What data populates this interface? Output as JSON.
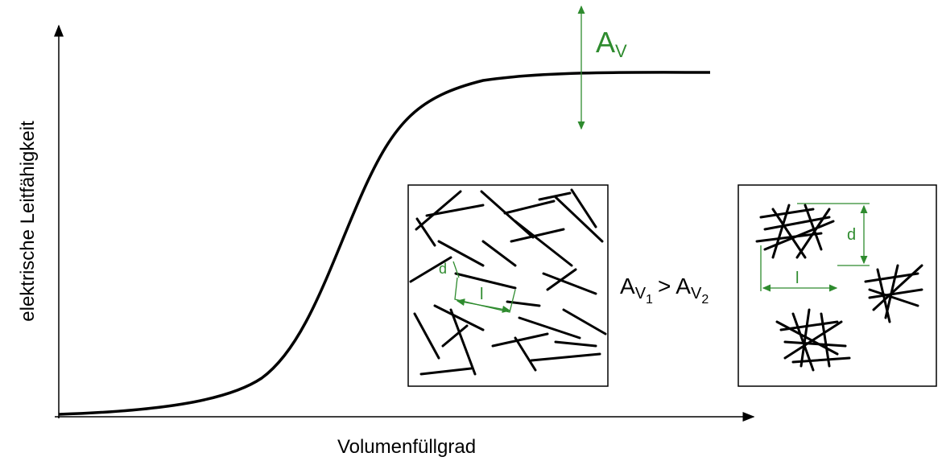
{
  "axes": {
    "x_label": "Volumenfüllgrad",
    "y_label": "elektrische Leitfähigkeit"
  },
  "annotation": {
    "symbol": "A",
    "subscript": "V"
  },
  "panel_1": {
    "diameter_label": "d",
    "length_label": "l"
  },
  "comparison": {
    "left_symbol": "A",
    "left_subscript": "V",
    "left_index": "1",
    "operator": ">",
    "right_symbol": "A",
    "right_subscript": "V",
    "right_index": "2"
  },
  "panel_2": {
    "diameter_label": "d",
    "length_label": "l"
  }
}
